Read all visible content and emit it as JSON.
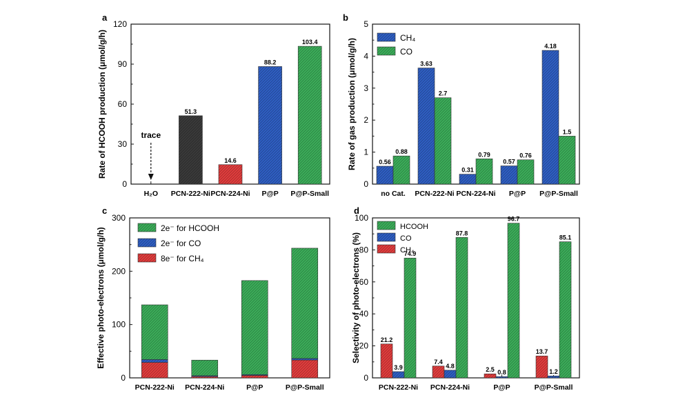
{
  "chart_data": [
    {
      "panel": "a",
      "type": "bar",
      "ylabel": "Rate of HCOOH production (μmol/g/h)",
      "ylim": [
        0,
        120
      ],
      "yticks": [
        0,
        30,
        60,
        90,
        120
      ],
      "categories": [
        "H₂O",
        "PCN-222-Ni",
        "PCN-224-Ni",
        "P@P",
        "P@P-Small"
      ],
      "values": [
        null,
        51.3,
        14.6,
        88.2,
        103.4
      ],
      "value_labels": [
        "",
        "51.3",
        "14.6",
        "88.2",
        "103.4"
      ],
      "bar_colors": [
        "",
        "#3a3a3a",
        "#e23d3d",
        "#2f5fc4",
        "#3cae5a"
      ],
      "annotation": "trace"
    },
    {
      "panel": "b",
      "type": "bar",
      "ylabel": "Rate of gas production (μmol/g/h)",
      "ylim": [
        0,
        5
      ],
      "yticks": [
        0,
        1,
        2,
        3,
        4,
        5
      ],
      "categories": [
        "no Cat.",
        "PCN-222-Ni",
        "PCN-224-Ni",
        "P@P",
        "P@P-Small"
      ],
      "series": [
        {
          "name": "CH₄",
          "color": "#2f5fc4",
          "values": [
            0.56,
            3.63,
            0.31,
            0.57,
            4.18
          ],
          "labels": [
            "0.56",
            "3.63",
            "0.31",
            "0.57",
            "4.18"
          ]
        },
        {
          "name": "CO",
          "color": "#3cae5a",
          "values": [
            0.88,
            2.7,
            0.79,
            0.76,
            1.5
          ],
          "labels": [
            "0.88",
            "2.7",
            "0.79",
            "0.76",
            "1.5"
          ]
        }
      ],
      "legend": "top-left"
    },
    {
      "panel": "c",
      "type": "bar",
      "stacked": true,
      "ylabel": "Effective photo-electrons (μmol/g/h)",
      "ylim": [
        0,
        300
      ],
      "yticks": [
        0,
        100,
        200,
        300
      ],
      "categories": [
        "PCN-222-Ni",
        "PCN-224-Ni",
        "P@P",
        "P@P-Small"
      ],
      "series": [
        {
          "name": "8e⁻ for CH₄",
          "color": "#e23d3d",
          "values": [
            29.0,
            2.5,
            4.6,
            33.4
          ]
        },
        {
          "name": "2e⁻ for CO",
          "color": "#2f5fc4",
          "values": [
            5.4,
            1.6,
            1.5,
            3.0
          ]
        },
        {
          "name": "2e⁻ for HCOOH",
          "color": "#3cae5a",
          "values": [
            102.6,
            29.2,
            176.4,
            206.8
          ]
        }
      ],
      "legend_order": [
        "2e⁻ for HCOOH",
        "2e⁻ for CO",
        "8e⁻ for CH₄"
      ],
      "legend": "top-left"
    },
    {
      "panel": "d",
      "type": "bar",
      "ylabel": "Selectivity of photo-electrons (%)",
      "ylim": [
        0,
        100
      ],
      "yticks": [
        0,
        20,
        40,
        60,
        80,
        100
      ],
      "categories": [
        "PCN-222-Ni",
        "PCN-224-Ni",
        "P@P",
        "P@P-Small"
      ],
      "series": [
        {
          "name": "CH₄",
          "color": "#e23d3d",
          "values": [
            21.2,
            7.4,
            2.5,
            13.7
          ],
          "labels": [
            "21.2",
            "7.4",
            "2.5",
            "13.7"
          ]
        },
        {
          "name": "CO",
          "color": "#2f5fc4",
          "values": [
            3.9,
            4.8,
            0.8,
            1.2
          ],
          "labels": [
            "3.9",
            "4.8",
            "0.8",
            "1.2"
          ]
        },
        {
          "name": "HCOOH",
          "color": "#3cae5a",
          "values": [
            74.9,
            87.8,
            96.7,
            85.1
          ],
          "labels": [
            "74.9",
            "87.8",
            "96.7",
            "85.1"
          ]
        }
      ],
      "legend_order": [
        "HCOOH",
        "CO",
        "CH₄"
      ],
      "legend": "top-left"
    }
  ]
}
